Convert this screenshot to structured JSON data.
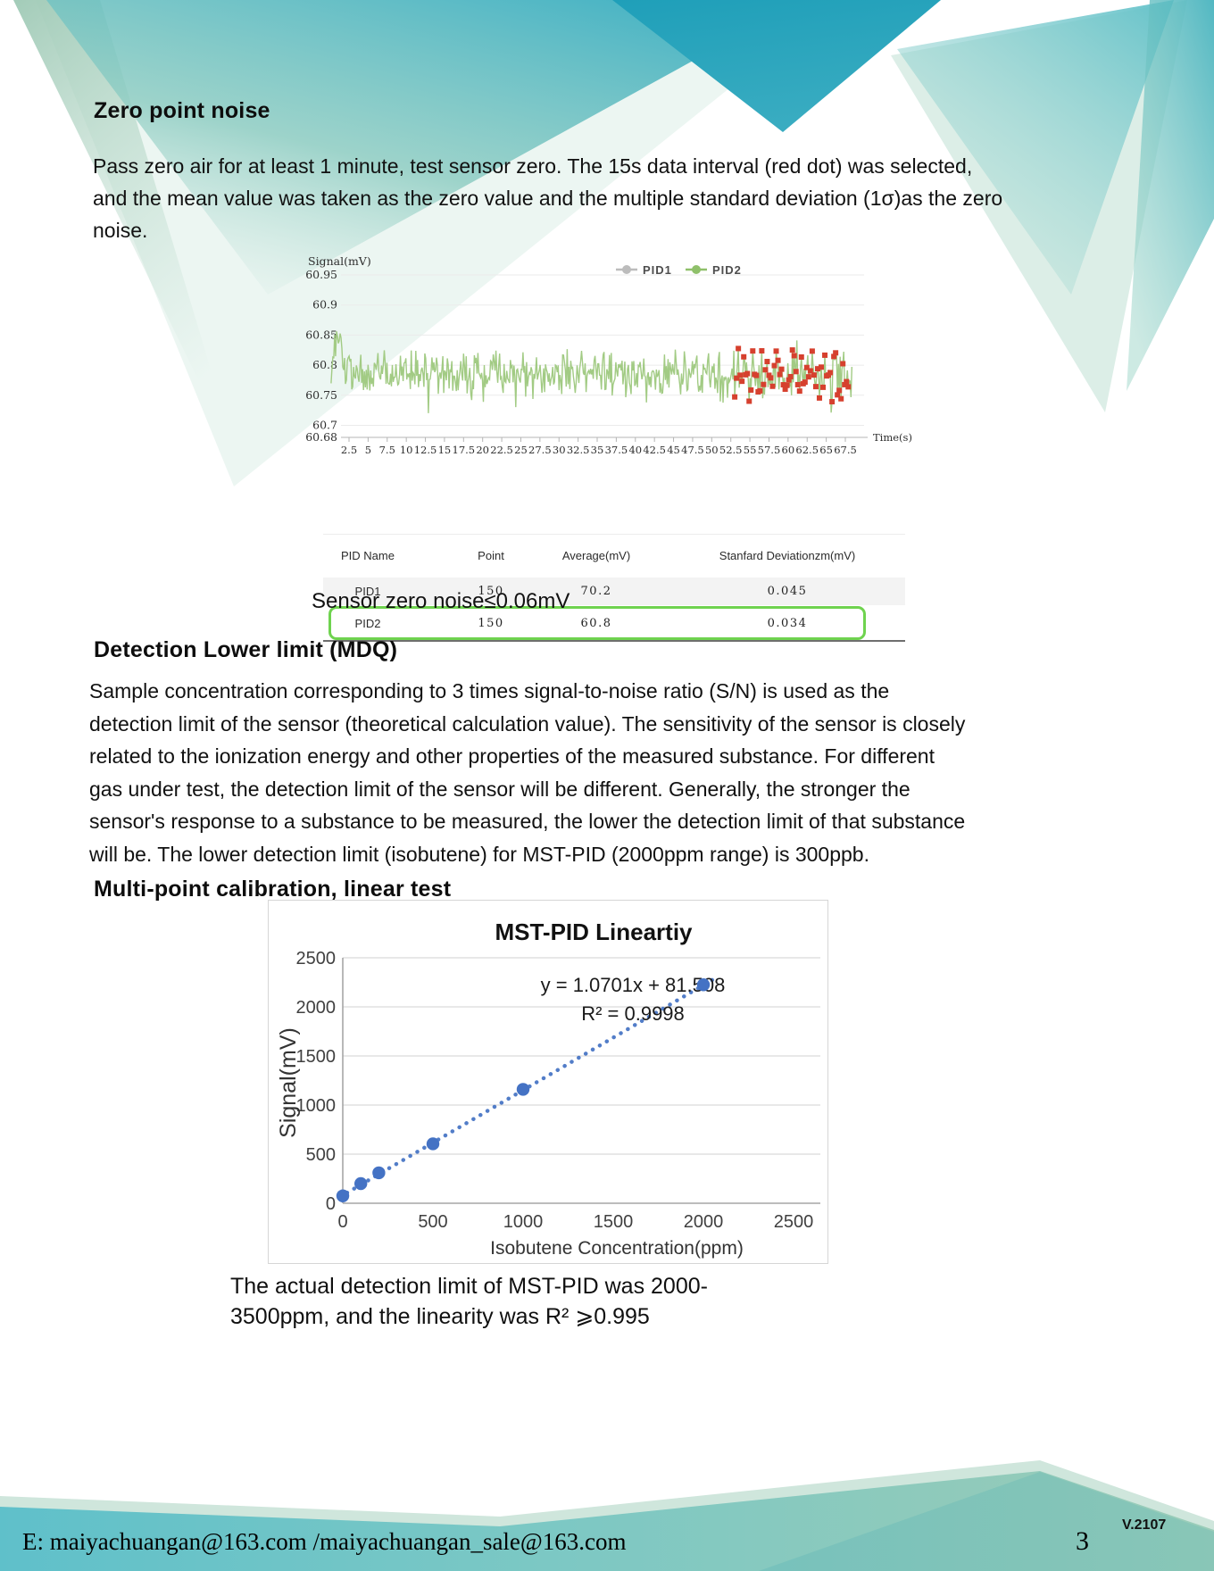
{
  "zero_noise": {
    "heading": "Zero point noise",
    "paragraph": "Pass zero air for at least 1 minute, test sensor zero. The 15s data interval (red dot) was selected,\nand the mean value was taken as the zero value and the multiple standard deviation (1σ)as the zero\nnoise.",
    "table": {
      "headers": [
        "PID Name",
        "Point",
        "Average(mV)",
        "Stanfard Deviationzm(mV)"
      ],
      "rows": [
        [
          "PID1",
          "150",
          "70.2",
          "0.045"
        ],
        [
          "PID2",
          "150",
          "60.8",
          "0.034"
        ]
      ],
      "highlight_row_index": 1,
      "highlight_color": "#6fd34f"
    },
    "note": "Sensor zero noise≤0.06mV"
  },
  "mdq": {
    "heading": "Detection Lower limit (MDQ)",
    "paragraph": "Sample concentration corresponding to 3 times signal-to-noise ratio (S/N) is used as the\ndetection limit of the sensor (theoretical calculation value). The sensitivity of the sensor is closely\nrelated to the ionization energy and other properties of the measured substance. For different\ngas under test, the detection limit of the sensor will be different. Generally, the stronger the\nsensor's response to a substance to be measured, the lower the detection limit of that substance\nwill be. The lower detection limit (isobutene) for MST-PID (2000ppm range) is 300ppb."
  },
  "calibration": {
    "heading": "Multi-point calibration, linear test",
    "caption": "The actual detection limit of MST-PID was 2000-\n3500ppm, and the linearity was R² ⩾0.995"
  },
  "footer": {
    "email": "E: maiyachuangan@163.com /maiyachuangan_sale@163.com",
    "page_number": "3",
    "version": "V.2107"
  },
  "chart_data": [
    {
      "type": "line",
      "title": "",
      "ylabel": "Signal(mV)",
      "xlabel": "Time(s)",
      "legend": [
        {
          "name": "PID1",
          "color": "#bcbcbc"
        },
        {
          "name": "PID2",
          "color": "#8fc06a"
        }
      ],
      "ylim": [
        60.68,
        60.95
      ],
      "xlim": [
        0,
        68.5
      ],
      "y_ticks": [
        "60.95",
        "60.9",
        "60.85",
        "60.8",
        "60.75",
        "60.7",
        "60.68"
      ],
      "y_tick_values": [
        60.95,
        60.9,
        60.85,
        60.8,
        60.75,
        60.7,
        60.68
      ],
      "x_ticks": [
        2.5,
        5,
        7.5,
        10,
        12.5,
        15,
        17.5,
        20,
        22.5,
        25,
        27.5,
        30,
        32.5,
        35,
        37.5,
        40,
        42.5,
        45,
        47.5,
        50,
        52.5,
        55,
        57.5,
        60,
        62.5,
        65,
        67.5
      ],
      "grid": true,
      "line_color": "#a2cb84",
      "marker_color": "#d6402e",
      "series_summary": {
        "PID2": {
          "mean_mV": 60.8,
          "points": 150,
          "noise_band_mV": [
            60.69,
            60.91
          ],
          "visible": true
        },
        "PID1": {
          "mean_mV": 70.2,
          "points": 150,
          "visible": false,
          "note": "out of axis range, not drawn"
        }
      },
      "red_marker_time_range_s": [
        53,
        68
      ],
      "red_marker_meaning": "15s data interval selection"
    },
    {
      "type": "scatter",
      "title": "MST-PID Lineartiy",
      "xlabel": "Isobutene Concentration(ppm)",
      "ylabel": "Signal(mV)",
      "equation": "y = 1.0701x + 81.508",
      "r_squared": "R² = 0.9998",
      "trendline": {
        "slope": 1.0701,
        "intercept": 81.508,
        "style": "dotted",
        "color": "#4472c4"
      },
      "points": [
        [
          0,
          75
        ],
        [
          100,
          200
        ],
        [
          200,
          310
        ],
        [
          500,
          605
        ],
        [
          1000,
          1160
        ],
        [
          2000,
          2225
        ]
      ],
      "point_color": "#4472c4",
      "x_ticks": [
        0,
        500,
        1000,
        1500,
        2000,
        2500
      ],
      "y_ticks": [
        0,
        500,
        1000,
        1500,
        2000,
        2500
      ],
      "xlim": [
        0,
        2500
      ],
      "ylim": [
        0,
        2500
      ],
      "grid": true,
      "legend_position": "none"
    }
  ],
  "banner_colors": {
    "teal_dark": "#1f9fb9",
    "teal_mid": "#4ab2c2",
    "teal_light": "#a9d6cb",
    "sage": "#a4cbb8",
    "seam": "#dcefe8"
  }
}
